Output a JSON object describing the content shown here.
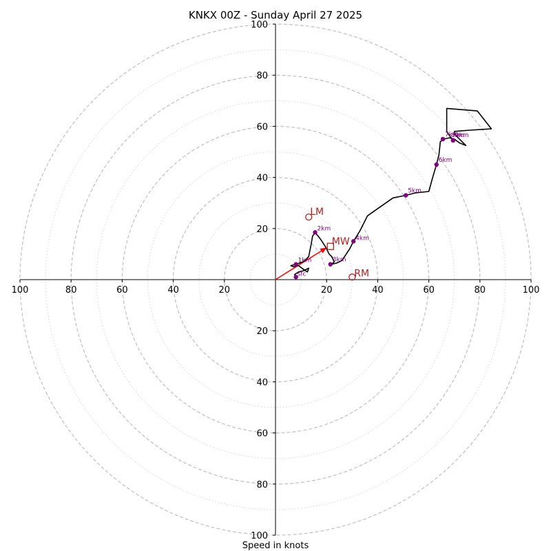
{
  "chart_data": {
    "type": "hodograph",
    "title": "KNKX 00Z - Sunday April 27 2025",
    "xlabel": "Speed in knots",
    "range": [
      -100,
      100
    ],
    "rings_major": [
      20,
      40,
      60,
      80,
      100
    ],
    "rings_minor": [
      10,
      30,
      50,
      70,
      90
    ],
    "tick_labels": {
      "top": [
        "20",
        "40",
        "60",
        "80",
        "100"
      ],
      "bottom": [
        "20",
        "40",
        "60",
        "80",
        "100"
      ],
      "left": [
        "100",
        "80",
        "60",
        "40",
        "20"
      ],
      "right": [
        "20",
        "40",
        "60",
        "80",
        "100"
      ]
    },
    "trace": [
      [
        8,
        1
      ],
      [
        7.5,
        2
      ],
      [
        9,
        3
      ],
      [
        11,
        3.5
      ],
      [
        13,
        4.5
      ],
      [
        12.5,
        3
      ],
      [
        11,
        4
      ],
      [
        9,
        5.5
      ],
      [
        7,
        5
      ],
      [
        6,
        5.5
      ],
      [
        8,
        6
      ],
      [
        11,
        7
      ],
      [
        13,
        9
      ],
      [
        14,
        14
      ],
      [
        14.5,
        17
      ],
      [
        15.5,
        18.5
      ],
      [
        17.5,
        16
      ],
      [
        19.5,
        13
      ],
      [
        21,
        10
      ],
      [
        22,
        9
      ],
      [
        23,
        7
      ],
      [
        22,
        6
      ],
      [
        24,
        6.5
      ],
      [
        26,
        7.5
      ],
      [
        27,
        9
      ],
      [
        29,
        12
      ],
      [
        30.5,
        15
      ],
      [
        33,
        19
      ],
      [
        36,
        25
      ],
      [
        41,
        28.5
      ],
      [
        46,
        32
      ],
      [
        51,
        33
      ],
      [
        55,
        34
      ],
      [
        60,
        34.5
      ],
      [
        61.5,
        40
      ],
      [
        63,
        45
      ],
      [
        64,
        49
      ],
      [
        64.5,
        54
      ],
      [
        66,
        55
      ],
      [
        68,
        55.5
      ],
      [
        70,
        55
      ],
      [
        72,
        53.5
      ],
      [
        74.5,
        52.5
      ],
      [
        72,
        55
      ],
      [
        70,
        57
      ],
      [
        70,
        58
      ],
      [
        76,
        58.5
      ],
      [
        84.5,
        59
      ],
      [
        79,
        66
      ],
      [
        67,
        67
      ],
      [
        67,
        62
      ],
      [
        67,
        58
      ],
      [
        68,
        56.5
      ],
      [
        69.5,
        54.5
      ]
    ],
    "height_points": [
      {
        "label": "sfc",
        "x": 8,
        "y": 1
      },
      {
        "label": "1km",
        "x": 8,
        "y": 6
      },
      {
        "label": "2km",
        "x": 15.5,
        "y": 18.5
      },
      {
        "label": "3km",
        "x": 21.5,
        "y": 6
      },
      {
        "label": "4km",
        "x": 30.5,
        "y": 15
      },
      {
        "label": "5km",
        "x": 51,
        "y": 33
      },
      {
        "label": "6km",
        "x": 63,
        "y": 45
      },
      {
        "label": "7km",
        "x": 65.5,
        "y": 55
      },
      {
        "label": "8km",
        "x": 69.5,
        "y": 54.5
      },
      {
        "label": "9km",
        "x": 69.5,
        "y": 54.5
      }
    ],
    "markers": {
      "LM": {
        "label": "LM",
        "x": 13,
        "y": 24.5
      },
      "MW": {
        "label": "MW",
        "x": 21.5,
        "y": 13
      },
      "RM": {
        "label": "RM",
        "x": 30,
        "y": 1
      }
    },
    "shear_vector": {
      "from": [
        0,
        0
      ],
      "to": [
        20,
        12.5
      ]
    },
    "colors": {
      "trace": "#000000",
      "height_points": "#800080",
      "markers": "#b22222",
      "shear_vector": "#ff0000",
      "rings": "#bfbfbf"
    }
  }
}
